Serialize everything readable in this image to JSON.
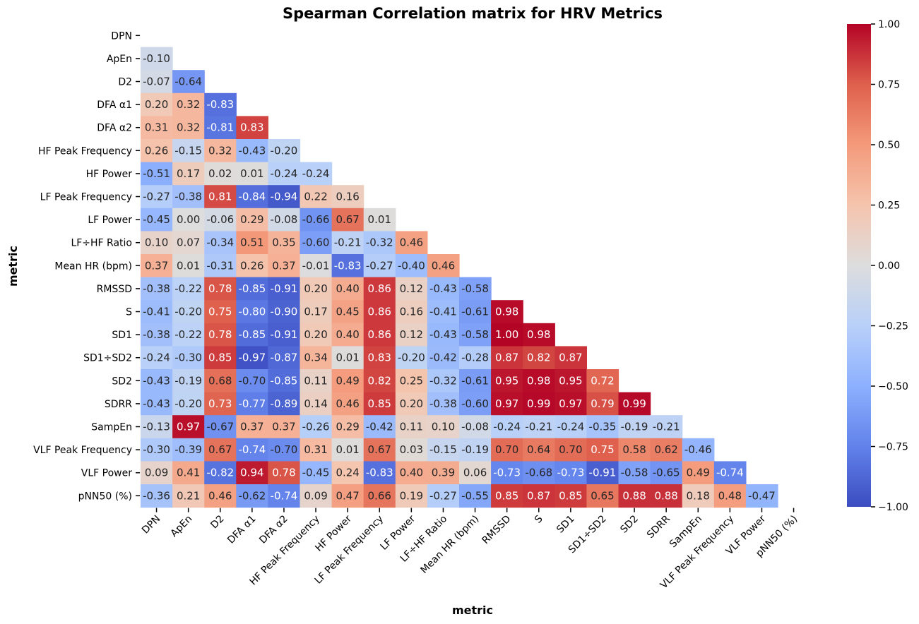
{
  "chart_data": {
    "type": "heatmap",
    "title": "Spearman Correlation matrix for HRV Metrics",
    "xlabel": "metric",
    "ylabel": "metric",
    "colormap": "coolwarm",
    "vmin": -1.0,
    "vmax": 1.0,
    "mask": "upper-triangle-including-diagonal",
    "labels": [
      "DPN",
      "ApEn",
      "D2",
      "DFA α1",
      "DFA α2",
      "HF Peak Frequency",
      "HF Power",
      "LF Peak Frequency",
      "LF Power",
      "LF÷HF Ratio",
      "Mean HR (bpm)",
      "RMSSD",
      "S",
      "SD1",
      "SD1÷SD2",
      "SD2",
      "SDRR",
      "SampEn",
      "VLF Peak Frequency",
      "VLF Power",
      "pNN50 (%)"
    ],
    "matrix": [
      [],
      [
        -0.1
      ],
      [
        -0.07,
        -0.64
      ],
      [
        0.2,
        0.32,
        -0.83
      ],
      [
        0.31,
        0.32,
        -0.81,
        0.83
      ],
      [
        0.26,
        -0.15,
        0.32,
        -0.43,
        -0.2
      ],
      [
        -0.51,
        0.17,
        0.02,
        0.01,
        -0.24,
        -0.24
      ],
      [
        -0.27,
        -0.38,
        0.81,
        -0.84,
        -0.94,
        0.22,
        0.16
      ],
      [
        -0.45,
        0.0,
        -0.06,
        0.29,
        -0.08,
        -0.66,
        0.67,
        0.01
      ],
      [
        0.1,
        0.07,
        -0.34,
        0.51,
        0.35,
        -0.6,
        -0.21,
        -0.32,
        0.46
      ],
      [
        0.37,
        0.01,
        -0.31,
        0.26,
        0.37,
        -0.01,
        -0.83,
        -0.27,
        -0.4,
        0.46
      ],
      [
        -0.38,
        -0.22,
        0.78,
        -0.85,
        -0.91,
        0.2,
        0.4,
        0.86,
        0.12,
        -0.43,
        -0.58
      ],
      [
        -0.41,
        -0.2,
        0.75,
        -0.8,
        -0.9,
        0.17,
        0.45,
        0.86,
        0.16,
        -0.41,
        -0.61,
        0.98
      ],
      [
        -0.38,
        -0.22,
        0.78,
        -0.85,
        -0.91,
        0.2,
        0.4,
        0.86,
        0.12,
        -0.43,
        -0.58,
        1.0,
        0.98
      ],
      [
        -0.24,
        -0.3,
        0.85,
        -0.97,
        -0.87,
        0.34,
        0.01,
        0.83,
        -0.2,
        -0.42,
        -0.28,
        0.87,
        0.82,
        0.87
      ],
      [
        -0.43,
        -0.19,
        0.68,
        -0.7,
        -0.85,
        0.11,
        0.49,
        0.82,
        0.25,
        -0.32,
        -0.61,
        0.95,
        0.98,
        0.95,
        0.72
      ],
      [
        -0.43,
        -0.2,
        0.73,
        -0.77,
        -0.89,
        0.14,
        0.46,
        0.85,
        0.2,
        -0.38,
        -0.6,
        0.97,
        0.99,
        0.97,
        0.79,
        0.99
      ],
      [
        -0.13,
        0.97,
        -0.67,
        0.37,
        0.37,
        -0.26,
        0.29,
        -0.42,
        0.11,
        0.1,
        -0.08,
        -0.24,
        -0.21,
        -0.24,
        -0.35,
        -0.19,
        -0.21
      ],
      [
        -0.3,
        -0.39,
        0.67,
        -0.74,
        -0.7,
        0.31,
        0.01,
        0.67,
        0.03,
        -0.15,
        -0.19,
        0.7,
        0.64,
        0.7,
        0.75,
        0.58,
        0.62,
        -0.46
      ],
      [
        0.09,
        0.41,
        -0.82,
        0.94,
        0.78,
        -0.45,
        0.24,
        -0.83,
        0.4,
        0.39,
        0.06,
        -0.73,
        -0.68,
        -0.73,
        -0.91,
        -0.58,
        -0.65,
        0.49,
        -0.74
      ],
      [
        -0.36,
        0.21,
        0.46,
        -0.62,
        -0.74,
        0.09,
        0.47,
        0.66,
        0.19,
        -0.27,
        -0.55,
        0.85,
        0.87,
        0.85,
        0.65,
        0.88,
        0.88,
        0.18,
        0.48,
        -0.47
      ]
    ],
    "colorbar_ticks": [
      1.0,
      0.75,
      0.5,
      0.25,
      0.0,
      -0.25,
      -0.5,
      -0.75,
      -1.0
    ],
    "colorbar_tick_labels": [
      "1.00",
      "0.75",
      "0.50",
      "0.25",
      "0.00",
      "−0.25",
      "−0.50",
      "−0.75",
      "−1.00"
    ],
    "grid": false,
    "legend": "colorbar-right"
  }
}
